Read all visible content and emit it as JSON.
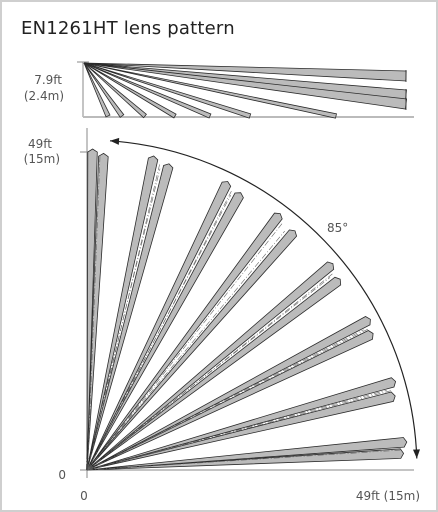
{
  "title": "EN1261HT lens pattern",
  "side_view": {
    "height_ft": "7.9ft",
    "height_m": "(2.4m)"
  },
  "top_view": {
    "range_ft": "49ft",
    "range_m": "(15m)",
    "origin_y_label": "0",
    "origin_x_label": "0",
    "range_x_label": "49ft (15m)",
    "angle_label": "85°",
    "beam_angles_deg": [
      -3,
      -5,
      -13.5,
      -16,
      -25.5,
      -28,
      -37,
      -40,
      -49,
      -53,
      -61,
      -64,
      -75,
      -78,
      -87,
      -89
    ]
  },
  "colors": {
    "beam_fill": "#bbbbbb",
    "beam_stroke": "#2b2b2b",
    "frame": "#cfcfcf",
    "text": "#222222",
    "label": "#555555"
  }
}
